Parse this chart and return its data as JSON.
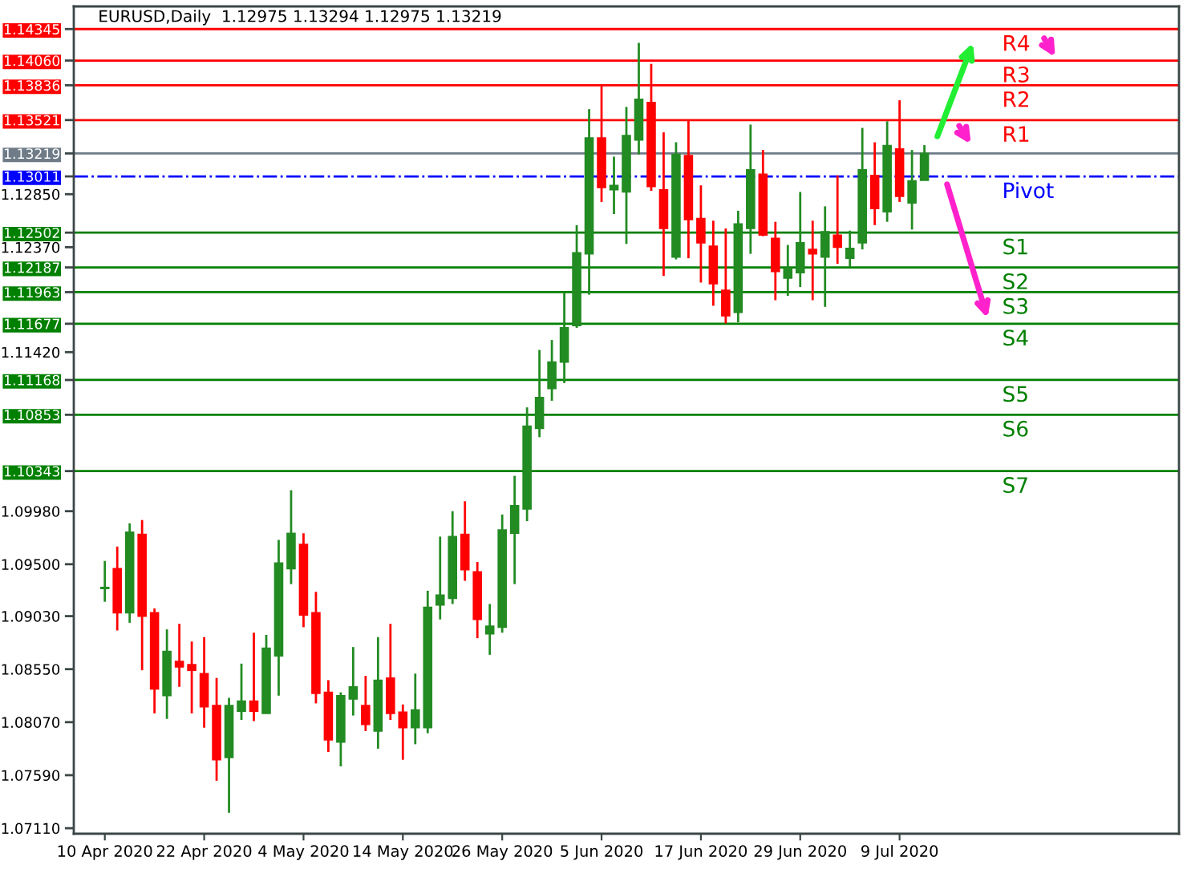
{
  "chart_data": {
    "type": "candlestick",
    "title": "EURUSD,Daily  1.12975 1.13294 1.12975 1.13219",
    "categories": [
      "10 Apr 2020",
      null,
      null,
      null,
      null,
      null,
      null,
      null,
      "22 Apr 2020",
      null,
      null,
      null,
      null,
      null,
      null,
      null,
      "4 May 2020",
      null,
      null,
      null,
      null,
      null,
      null,
      null,
      "14 May 2020",
      null,
      null,
      null,
      null,
      null,
      null,
      null,
      "26 May 2020",
      null,
      null,
      null,
      null,
      null,
      null,
      null,
      "5 Jun 2020",
      null,
      null,
      null,
      null,
      null,
      null,
      null,
      "17 Jun 2020",
      null,
      null,
      null,
      null,
      null,
      null,
      null,
      "29 Jun 2020",
      null,
      null,
      null,
      null,
      null,
      null,
      null,
      "9 Jul 2020",
      null,
      null
    ],
    "ohlc": [
      [
        1.0928,
        1.0953,
        1.0916,
        1.0929
      ],
      [
        1.0946,
        1.0966,
        1.089,
        1.0906
      ],
      [
        1.0906,
        1.0987,
        1.0897,
        1.0979
      ],
      [
        1.0977,
        1.099,
        1.0854,
        1.0903
      ],
      [
        1.0906,
        1.091,
        1.0815,
        1.0837
      ],
      [
        1.0831,
        1.0891,
        1.081,
        1.0871
      ],
      [
        1.0862,
        1.0896,
        1.0839,
        1.0857
      ],
      [
        1.0859,
        1.088,
        1.0815,
        1.0854
      ],
      [
        1.0851,
        1.0884,
        1.0802,
        1.0821
      ],
      [
        1.0822,
        1.0847,
        1.0754,
        1.0773
      ],
      [
        1.0775,
        1.0829,
        1.0725,
        1.0822
      ],
      [
        1.0817,
        1.086,
        1.0809,
        1.0826
      ],
      [
        1.0826,
        1.0888,
        1.0808,
        1.0817
      ],
      [
        1.0815,
        1.0886,
        1.0815,
        1.0874
      ],
      [
        1.0867,
        1.0972,
        1.0831,
        1.0951
      ],
      [
        1.0946,
        1.1017,
        1.0932,
        1.0978
      ],
      [
        1.0968,
        1.0978,
        1.0893,
        1.0904
      ],
      [
        1.0906,
        1.0925,
        1.0824,
        1.0833
      ],
      [
        1.0834,
        1.0845,
        1.078,
        1.0791
      ],
      [
        1.0789,
        1.0834,
        1.0767,
        1.0831
      ],
      [
        1.0828,
        1.0875,
        1.0813,
        1.0839
      ],
      [
        1.0822,
        1.0849,
        1.0799,
        1.0805
      ],
      [
        1.0799,
        1.0884,
        1.0783,
        1.0845
      ],
      [
        1.0847,
        1.0896,
        1.0809,
        1.0815
      ],
      [
        1.0816,
        1.0823,
        1.0773,
        1.0802
      ],
      [
        1.0802,
        1.0851,
        1.0787,
        1.0818
      ],
      [
        1.0802,
        1.0926,
        1.0797,
        1.0911
      ],
      [
        1.0913,
        1.0975,
        1.09,
        1.0922
      ],
      [
        1.0919,
        1.0998,
        1.0914,
        1.0975
      ],
      [
        1.0977,
        1.1007,
        1.0935,
        1.0945
      ],
      [
        1.0943,
        1.0952,
        1.0883,
        1.09
      ],
      [
        1.0887,
        1.0914,
        1.0868,
        1.0894
      ],
      [
        1.0893,
        1.0995,
        1.0888,
        1.0981
      ],
      [
        1.0978,
        1.103,
        1.0932,
        1.1003
      ],
      [
        1.1,
        1.1092,
        1.0989,
        1.1075
      ],
      [
        1.1073,
        1.1144,
        1.1065,
        1.1101
      ],
      [
        1.1109,
        1.1153,
        1.1098,
        1.1133
      ],
      [
        1.1133,
        1.1196,
        1.1114,
        1.1164
      ],
      [
        1.1166,
        1.1257,
        1.1164,
        1.1232
      ],
      [
        1.1231,
        1.1362,
        1.1194,
        1.1336
      ],
      [
        1.1336,
        1.1383,
        1.1278,
        1.1291
      ],
      [
        1.1289,
        1.1319,
        1.1267,
        1.1293
      ],
      [
        1.1287,
        1.1364,
        1.124,
        1.1338
      ],
      [
        1.1334,
        1.1422,
        1.1321,
        1.1371
      ],
      [
        1.1368,
        1.1403,
        1.1288,
        1.1292
      ],
      [
        1.1289,
        1.1341,
        1.1211,
        1.1254
      ],
      [
        1.1228,
        1.1332,
        1.1226,
        1.1321
      ],
      [
        1.132,
        1.1352,
        1.1227,
        1.1262
      ],
      [
        1.1263,
        1.1293,
        1.1205,
        1.1241
      ],
      [
        1.1238,
        1.1261,
        1.1184,
        1.1204
      ],
      [
        1.1198,
        1.1254,
        1.1168,
        1.1175
      ],
      [
        1.1178,
        1.127,
        1.1169,
        1.1258
      ],
      [
        1.1254,
        1.1348,
        1.1231,
        1.1307
      ],
      [
        1.1303,
        1.1325,
        1.1247,
        1.1248
      ],
      [
        1.1245,
        1.126,
        1.1189,
        1.1215
      ],
      [
        1.1209,
        1.1239,
        1.1193,
        1.1218
      ],
      [
        1.1214,
        1.1287,
        1.1201,
        1.1241
      ],
      [
        1.1235,
        1.1261,
        1.1189,
        1.1231
      ],
      [
        1.1228,
        1.1274,
        1.1183,
        1.1251
      ],
      [
        1.1248,
        1.1302,
        1.1222,
        1.1237
      ],
      [
        1.1227,
        1.1252,
        1.1219,
        1.1236
      ],
      [
        1.1241,
        1.1345,
        1.1235,
        1.1307
      ],
      [
        1.1302,
        1.1332,
        1.1257,
        1.1272
      ],
      [
        1.1269,
        1.1351,
        1.126,
        1.1329
      ],
      [
        1.1326,
        1.137,
        1.1278,
        1.1283
      ],
      [
        1.1277,
        1.1325,
        1.1253,
        1.1297
      ],
      [
        1.12975,
        1.13294,
        1.12975,
        1.13219
      ]
    ],
    "colors": [
      "#228b22",
      "#ff0000",
      "#228b22",
      "#ff0000",
      "#ff0000",
      "#228b22",
      "#ff0000",
      "#ff0000",
      "#ff0000",
      "#ff0000",
      "#228b22",
      "#228b22",
      "#ff0000",
      "#228b22",
      "#228b22",
      "#228b22",
      "#ff0000",
      "#ff0000",
      "#ff0000",
      "#228b22",
      "#228b22",
      "#ff0000",
      "#228b22",
      "#ff0000",
      "#ff0000",
      "#228b22",
      "#228b22",
      "#228b22",
      "#228b22",
      "#ff0000",
      "#ff0000",
      "#228b22",
      "#228b22",
      "#228b22",
      "#228b22",
      "#228b22",
      "#228b22",
      "#228b22",
      "#228b22",
      "#228b22",
      "#ff0000",
      "#228b22",
      "#228b22",
      "#228b22",
      "#ff0000",
      "#ff0000",
      "#228b22",
      "#ff0000",
      "#ff0000",
      "#ff0000",
      "#ff0000",
      "#228b22",
      "#228b22",
      "#ff0000",
      "#ff0000",
      "#228b22",
      "#228b22",
      "#ff0000",
      "#228b22",
      "#ff0000",
      "#228b22",
      "#228b22",
      "#ff0000",
      "#228b22",
      "#ff0000",
      "#228b22",
      "#228b22"
    ],
    "ylim": [
      1.0706,
      1.1455
    ],
    "yticks": [
      {
        "value": 1.0711,
        "label": "1.07110"
      },
      {
        "value": 1.0759,
        "label": "1.07590"
      },
      {
        "value": 1.0807,
        "label": "1.08070"
      },
      {
        "value": 1.0855,
        "label": "1.08550"
      },
      {
        "value": 1.0903,
        "label": "1.09030"
      },
      {
        "value": 1.095,
        "label": "1.09500"
      },
      {
        "value": 1.0998,
        "label": "1.09980"
      },
      {
        "value": 1.10343,
        "label": "1.10343"
      },
      {
        "value": 1.10853,
        "label": "1.10853"
      },
      {
        "value": 1.11168,
        "label": "1.11168"
      },
      {
        "value": 1.1142,
        "label": "1.11420"
      },
      {
        "value": 1.11677,
        "label": "1.11677"
      },
      {
        "value": 1.11963,
        "label": "1.11963"
      },
      {
        "value": 1.12187,
        "label": "1.12187"
      },
      {
        "value": 1.1237,
        "label": "1.12370"
      },
      {
        "value": 1.12502,
        "label": "1.12502"
      },
      {
        "value": 1.1285,
        "label": "1.12850"
      },
      {
        "value": 1.13011,
        "label": "1.13011"
      },
      {
        "value": 1.13219,
        "label": "1.13219"
      },
      {
        "value": 1.13521,
        "label": "1.13521"
      },
      {
        "value": 1.13836,
        "label": "1.13836"
      },
      {
        "value": 1.1406,
        "label": "1.14060"
      },
      {
        "value": 1.14345,
        "label": "1.14345"
      }
    ],
    "ref_lines": [
      {
        "axis": "y",
        "value": 1.14345,
        "label": "R4",
        "color": "#ff0000"
      },
      {
        "axis": "y",
        "value": 1.1406,
        "label": "R3",
        "color": "#ff0000"
      },
      {
        "axis": "y",
        "value": 1.13836,
        "label": "R2",
        "color": "#ff0000"
      },
      {
        "axis": "y",
        "value": 1.13521,
        "label": "R1",
        "color": "#ff0000"
      },
      {
        "axis": "y",
        "value": 1.13219,
        "color": "#6f7c88"
      },
      {
        "axis": "y",
        "value": 1.13011,
        "label": "Pivot",
        "color": "#0000ff",
        "line_style": "dashdot"
      },
      {
        "axis": "y",
        "value": 1.12502,
        "label": "S1",
        "color": "#008000"
      },
      {
        "axis": "y",
        "value": 1.12187,
        "label": "S2",
        "color": "#008000"
      },
      {
        "axis": "y",
        "value": 1.11963,
        "label": "S3",
        "color": "#008000"
      },
      {
        "axis": "y",
        "value": 1.11677,
        "label": "S4",
        "color": "#008000"
      },
      {
        "axis": "y",
        "value": 1.11168,
        "label": "S5",
        "color": "#008000"
      },
      {
        "axis": "y",
        "value": 1.10853,
        "label": "S6",
        "color": "#008000"
      },
      {
        "axis": "y",
        "value": 1.10343,
        "label": "S7",
        "color": "#008000"
      }
    ]
  }
}
